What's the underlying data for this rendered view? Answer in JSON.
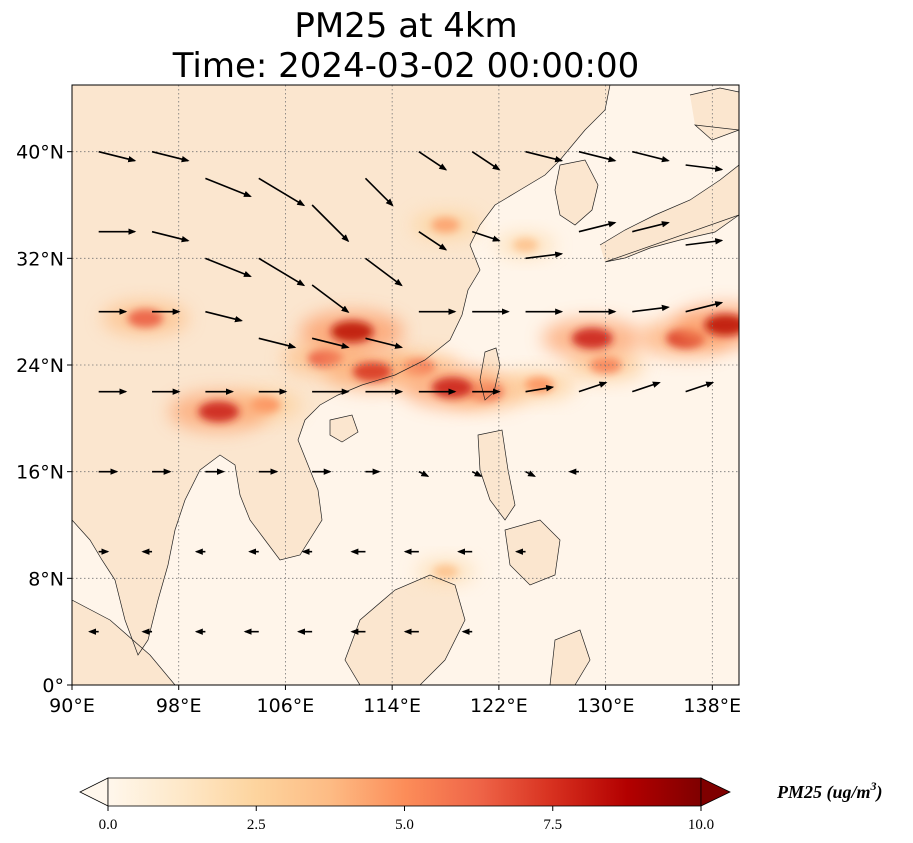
{
  "figure": {
    "title_line1": "PM25 at 4km",
    "title_line2": "Time: 2024-03-02 00:00:00"
  },
  "map": {
    "lon_range": [
      90,
      140
    ],
    "lat_range": [
      0,
      45
    ],
    "x_ticks": [
      {
        "value": 90,
        "label": "90°E"
      },
      {
        "value": 98,
        "label": "98°E"
      },
      {
        "value": 106,
        "label": "106°E"
      },
      {
        "value": 114,
        "label": "114°E"
      },
      {
        "value": 122,
        "label": "122°E"
      },
      {
        "value": 130,
        "label": "130°E"
      },
      {
        "value": 138,
        "label": "138°E"
      }
    ],
    "y_ticks": [
      {
        "value": 0,
        "label": "0°"
      },
      {
        "value": 8,
        "label": "8°N"
      },
      {
        "value": 16,
        "label": "16°N"
      },
      {
        "value": 24,
        "label": "24°N"
      },
      {
        "value": 32,
        "label": "32°N"
      },
      {
        "value": 40,
        "label": "40°N"
      }
    ],
    "gridlines": true,
    "land_color": "#fbe6cf",
    "ocean_color": "#fff5ea"
  },
  "chart_data": {
    "type": "heatmap",
    "variable": "PM25",
    "colormap": "OrRd",
    "vmin": 0.0,
    "vmax": 10.0,
    "plumes": [
      {
        "lon": 112.5,
        "lat": 23.5,
        "value": 7.5
      },
      {
        "lon": 111.0,
        "lat": 26.5,
        "value": 8.5
      },
      {
        "lon": 109.0,
        "lat": 24.5,
        "value": 6.5
      },
      {
        "lon": 116.0,
        "lat": 23.8,
        "value": 6.0
      },
      {
        "lon": 118.5,
        "lat": 22.3,
        "value": 8.0
      },
      {
        "lon": 121.0,
        "lat": 22.0,
        "value": 6.5
      },
      {
        "lon": 125.0,
        "lat": 22.5,
        "value": 5.0
      },
      {
        "lon": 130.0,
        "lat": 24.0,
        "value": 5.5
      },
      {
        "lon": 136.0,
        "lat": 26.0,
        "value": 7.5
      },
      {
        "lon": 139.0,
        "lat": 27.0,
        "value": 8.5
      },
      {
        "lon": 118.0,
        "lat": 34.5,
        "value": 4.5
      },
      {
        "lon": 124.0,
        "lat": 33.0,
        "value": 3.5
      },
      {
        "lon": 95.5,
        "lat": 27.5,
        "value": 6.5
      },
      {
        "lon": 101.0,
        "lat": 20.5,
        "value": 8.0
      },
      {
        "lon": 104.5,
        "lat": 21.0,
        "value": 5.0
      },
      {
        "lon": 118.0,
        "lat": 8.5,
        "value": 3.5
      },
      {
        "lon": 129.0,
        "lat": 26.0,
        "value": 8.0
      }
    ],
    "wind_vectors": [
      {
        "lon": 92,
        "lat": 40,
        "u": 4,
        "v": -1
      },
      {
        "lon": 96,
        "lat": 40,
        "u": 4,
        "v": -1
      },
      {
        "lon": 100,
        "lat": 38,
        "u": 5,
        "v": -2
      },
      {
        "lon": 104,
        "lat": 38,
        "u": 5,
        "v": -3
      },
      {
        "lon": 108,
        "lat": 36,
        "u": 4,
        "v": -4
      },
      {
        "lon": 112,
        "lat": 38,
        "u": 3,
        "v": -3
      },
      {
        "lon": 116,
        "lat": 40,
        "u": 3,
        "v": -2
      },
      {
        "lon": 120,
        "lat": 40,
        "u": 3,
        "v": -2
      },
      {
        "lon": 124,
        "lat": 40,
        "u": 4,
        "v": -1
      },
      {
        "lon": 128,
        "lat": 40,
        "u": 4,
        "v": -1
      },
      {
        "lon": 132,
        "lat": 40,
        "u": 4,
        "v": -1
      },
      {
        "lon": 136,
        "lat": 39,
        "u": 4,
        "v": -0.5
      },
      {
        "lon": 92,
        "lat": 34,
        "u": 4,
        "v": 0
      },
      {
        "lon": 96,
        "lat": 34,
        "u": 4,
        "v": -1
      },
      {
        "lon": 100,
        "lat": 32,
        "u": 5,
        "v": -2
      },
      {
        "lon": 104,
        "lat": 32,
        "u": 5,
        "v": -3
      },
      {
        "lon": 108,
        "lat": 30,
        "u": 4,
        "v": -3
      },
      {
        "lon": 112,
        "lat": 32,
        "u": 4,
        "v": -3
      },
      {
        "lon": 116,
        "lat": 34,
        "u": 3,
        "v": -2
      },
      {
        "lon": 120,
        "lat": 34,
        "u": 3,
        "v": -1
      },
      {
        "lon": 124,
        "lat": 32,
        "u": 4,
        "v": 0.5
      },
      {
        "lon": 128,
        "lat": 34,
        "u": 4,
        "v": 1
      },
      {
        "lon": 132,
        "lat": 34,
        "u": 4,
        "v": 1
      },
      {
        "lon": 136,
        "lat": 33,
        "u": 4,
        "v": 0.5
      },
      {
        "lon": 92,
        "lat": 28,
        "u": 3,
        "v": 0
      },
      {
        "lon": 96,
        "lat": 28,
        "u": 3,
        "v": 0
      },
      {
        "lon": 100,
        "lat": 28,
        "u": 4,
        "v": -1
      },
      {
        "lon": 104,
        "lat": 26,
        "u": 4,
        "v": -1
      },
      {
        "lon": 108,
        "lat": 26,
        "u": 4,
        "v": -1
      },
      {
        "lon": 112,
        "lat": 26,
        "u": 4,
        "v": -1
      },
      {
        "lon": 116,
        "lat": 28,
        "u": 4,
        "v": 0
      },
      {
        "lon": 120,
        "lat": 28,
        "u": 4,
        "v": 0
      },
      {
        "lon": 124,
        "lat": 28,
        "u": 4,
        "v": 0
      },
      {
        "lon": 128,
        "lat": 28,
        "u": 4,
        "v": 0
      },
      {
        "lon": 132,
        "lat": 28,
        "u": 4,
        "v": 0.5
      },
      {
        "lon": 136,
        "lat": 28,
        "u": 4,
        "v": 1
      },
      {
        "lon": 92,
        "lat": 22,
        "u": 3,
        "v": 0
      },
      {
        "lon": 96,
        "lat": 22,
        "u": 3,
        "v": 0
      },
      {
        "lon": 100,
        "lat": 22,
        "u": 3,
        "v": 0
      },
      {
        "lon": 104,
        "lat": 22,
        "u": 3,
        "v": 0
      },
      {
        "lon": 108,
        "lat": 22,
        "u": 4,
        "v": 0
      },
      {
        "lon": 112,
        "lat": 22,
        "u": 4,
        "v": 0
      },
      {
        "lon": 116,
        "lat": 22,
        "u": 4,
        "v": 0
      },
      {
        "lon": 120,
        "lat": 22,
        "u": 3,
        "v": 0
      },
      {
        "lon": 124,
        "lat": 22,
        "u": 3,
        "v": 0.5
      },
      {
        "lon": 128,
        "lat": 22,
        "u": 3,
        "v": 1
      },
      {
        "lon": 132,
        "lat": 22,
        "u": 3,
        "v": 1
      },
      {
        "lon": 136,
        "lat": 22,
        "u": 3,
        "v": 1
      },
      {
        "lon": 92,
        "lat": 16,
        "u": 2,
        "v": 0
      },
      {
        "lon": 96,
        "lat": 16,
        "u": 2,
        "v": 0
      },
      {
        "lon": 100,
        "lat": 16,
        "u": 2,
        "v": 0
      },
      {
        "lon": 104,
        "lat": 16,
        "u": 2,
        "v": 0
      },
      {
        "lon": 108,
        "lat": 16,
        "u": 2,
        "v": 0
      },
      {
        "lon": 112,
        "lat": 16,
        "u": 1.5,
        "v": 0
      },
      {
        "lon": 116,
        "lat": 16,
        "u": 1,
        "v": -0.5
      },
      {
        "lon": 120,
        "lat": 16,
        "u": 1,
        "v": -0.5
      },
      {
        "lon": 124,
        "lat": 16,
        "u": 1,
        "v": -0.5
      },
      {
        "lon": 128,
        "lat": 16,
        "u": -1,
        "v": 0
      },
      {
        "lon": 92,
        "lat": 10,
        "u": 1,
        "v": 0
      },
      {
        "lon": 96,
        "lat": 10,
        "u": -1,
        "v": 0
      },
      {
        "lon": 100,
        "lat": 10,
        "u": -1,
        "v": 0
      },
      {
        "lon": 104,
        "lat": 10,
        "u": -1,
        "v": 0
      },
      {
        "lon": 108,
        "lat": 10,
        "u": -1,
        "v": 0
      },
      {
        "lon": 112,
        "lat": 10,
        "u": -1.5,
        "v": 0
      },
      {
        "lon": 116,
        "lat": 10,
        "u": -1.5,
        "v": 0
      },
      {
        "lon": 120,
        "lat": 10,
        "u": -1.5,
        "v": 0
      },
      {
        "lon": 124,
        "lat": 10,
        "u": -1,
        "v": 0
      },
      {
        "lon": 92,
        "lat": 4,
        "u": -1,
        "v": 0
      },
      {
        "lon": 96,
        "lat": 4,
        "u": -1,
        "v": 0
      },
      {
        "lon": 100,
        "lat": 4,
        "u": -1,
        "v": 0
      },
      {
        "lon": 104,
        "lat": 4,
        "u": -1.5,
        "v": 0
      },
      {
        "lon": 108,
        "lat": 4,
        "u": -1.5,
        "v": 0
      },
      {
        "lon": 112,
        "lat": 4,
        "u": -1.5,
        "v": 0
      },
      {
        "lon": 116,
        "lat": 4,
        "u": -1.5,
        "v": 0
      },
      {
        "lon": 120,
        "lat": 4,
        "u": -1,
        "v": 0
      }
    ]
  },
  "colorbar": {
    "label": "PM25 (ug/m",
    "label_superscript": "3",
    "label_close": ")",
    "ticks": [
      {
        "value": 0.0,
        "label": "0.0"
      },
      {
        "value": 2.5,
        "label": "2.5"
      },
      {
        "value": 5.0,
        "label": "5.0"
      },
      {
        "value": 7.5,
        "label": "7.5"
      },
      {
        "value": 10.0,
        "label": "10.0"
      }
    ],
    "extend": "both",
    "colors": [
      "#fff7ec",
      "#fee8c8",
      "#fdd49e",
      "#fdbb84",
      "#fc8d59",
      "#ef6548",
      "#d7301f",
      "#b30000",
      "#7f0000"
    ]
  }
}
